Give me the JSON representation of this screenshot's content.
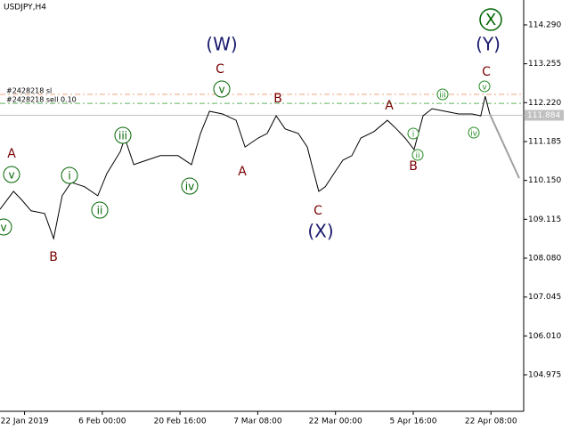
{
  "chart_data": {
    "type": "line",
    "title": "USDJPY,H4",
    "x": [
      0,
      3.3,
      5.4,
      7.6,
      10.9,
      13.1,
      15.2,
      17.4,
      20.7,
      23.9,
      26.1,
      29.4,
      30.5,
      32.7,
      35.9,
      39.2,
      43.5,
      46.8,
      49,
      51.2,
      54.4,
      57.7,
      59.9,
      63.1,
      65.3,
      67.5,
      69.7,
      72.9,
      75.1,
      76.2,
      77.9,
      79.5,
      81.6,
      83.8,
      86,
      88.2,
      91.4,
      94.7,
      96.9,
      99,
      101.2,
      103.4,
      105.6,
      108.8,
      112.1,
      115.4,
      117.5,
      118.6,
      119.7
    ],
    "values": [
      109.38,
      109.86,
      109.62,
      109.34,
      109.27,
      108.6,
      109.74,
      110.1,
      109.98,
      109.74,
      110.33,
      110.92,
      111.28,
      110.57,
      110.69,
      110.81,
      110.81,
      110.57,
      111.4,
      111.99,
      111.92,
      111.75,
      111.04,
      111.28,
      111.4,
      111.87,
      111.52,
      111.4,
      111.04,
      110.57,
      109.86,
      109.98,
      110.33,
      110.69,
      110.81,
      111.28,
      111.45,
      111.75,
      111.52,
      111.28,
      110.97,
      111.87,
      112.06,
      111.99,
      111.92,
      111.92,
      111.87,
      112.39,
      111.92
    ],
    "color": "#000000",
    "forecast": {
      "x": [
        119.7,
        126.9
      ],
      "values": [
        111.92,
        110.21
      ],
      "color": "#a0a0a0"
    },
    "levels": [
      {
        "label": "#2428218 sl",
        "value": 112.44,
        "color": "#f4a582"
      },
      {
        "label": "#2428218 sell 0.10",
        "value": 112.2,
        "color": "#5fb35f"
      }
    ],
    "current_price": 111.884,
    "wave_labels": [
      "(W)",
      "C",
      "v",
      "A",
      "v",
      "B",
      "i",
      "ii",
      "iii",
      "iv",
      "A",
      "B",
      "C",
      "(X)",
      "A",
      "i",
      "ii",
      "B",
      "iii",
      "iv",
      "v",
      "C",
      "(Y)",
      "X",
      "v"
    ],
    "xlim": [
      0,
      128
    ],
    "xticks": [
      {
        "value": 6,
        "label": "22 Jan 2019"
      },
      {
        "value": 25,
        "label": "6 Feb 00:00"
      },
      {
        "value": 44,
        "label": "20 Feb 16:00"
      },
      {
        "value": 63,
        "label": "7 Mar 08:00"
      },
      {
        "value": 82,
        "label": "22 Mar 00:00"
      },
      {
        "value": 101,
        "label": "5 Apr 16:00"
      },
      {
        "value": 120,
        "label": "22 Apr 08:00"
      }
    ],
    "ylim": [
      104.003,
      114.953
    ],
    "yticks": [
      {
        "value": 114.29,
        "label": "114.290"
      },
      113.255,
      {
        "value": 112.22,
        "label": "112.220"
      },
      111.185,
      {
        "value": 110.15,
        "label": "110.150"
      },
      109.115,
      {
        "value": 108.08,
        "label": "108.080"
      },
      107.045,
      {
        "value": 106.01,
        "label": "106.010"
      },
      104.975
    ]
  }
}
